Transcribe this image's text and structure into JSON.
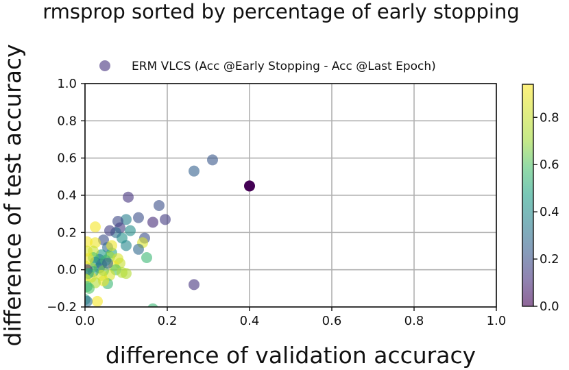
{
  "chart_data": {
    "type": "scatter",
    "title": "rmsprop sorted by percentage of early stopping",
    "xlabel": "difference of validation accuracy",
    "ylabel": "difference of test accuracy",
    "xlim": [
      0.0,
      1.0
    ],
    "ylim": [
      -0.2,
      1.0
    ],
    "xticks": [
      "0.0",
      "0.2",
      "0.4",
      "0.6",
      "0.8",
      "1.0"
    ],
    "yticks": [
      "−0.2",
      "0.0",
      "0.2",
      "0.4",
      "0.6",
      "0.8",
      "1.0"
    ],
    "grid": true,
    "legend": {
      "entry": "ERM VLCS (Acc @Early Stopping - Acc @Last Epoch)",
      "placement": "top-center"
    },
    "colorbar": {
      "ticks": [
        "0.0",
        "0.2",
        "0.4",
        "0.6",
        "0.8"
      ],
      "range": [
        0.0,
        0.94
      ],
      "colormap": "viridis"
    },
    "series": [
      {
        "name": "ERM VLCS (Acc @Early Stopping - Acc @Last Epoch)",
        "points": [
          {
            "x": 0.4,
            "y": 0.45,
            "c": 0.0
          },
          {
            "x": 0.31,
            "y": 0.59,
            "c": 0.22
          },
          {
            "x": 0.265,
            "y": 0.53,
            "c": 0.25
          },
          {
            "x": 0.265,
            "y": -0.08,
            "c": 0.12
          },
          {
            "x": 0.18,
            "y": 0.345,
            "c": 0.2
          },
          {
            "x": 0.195,
            "y": 0.27,
            "c": 0.14
          },
          {
            "x": 0.165,
            "y": 0.255,
            "c": 0.1
          },
          {
            "x": 0.105,
            "y": 0.39,
            "c": 0.12
          },
          {
            "x": 0.13,
            "y": 0.28,
            "c": 0.2
          },
          {
            "x": 0.1,
            "y": 0.27,
            "c": 0.35
          },
          {
            "x": 0.08,
            "y": 0.26,
            "c": 0.18
          },
          {
            "x": 0.085,
            "y": 0.225,
            "c": 0.15
          },
          {
            "x": 0.11,
            "y": 0.21,
            "c": 0.4
          },
          {
            "x": 0.09,
            "y": 0.17,
            "c": 0.42
          },
          {
            "x": 0.145,
            "y": 0.17,
            "c": 0.2
          },
          {
            "x": 0.14,
            "y": 0.145,
            "c": 0.85
          },
          {
            "x": 0.13,
            "y": 0.11,
            "c": 0.28
          },
          {
            "x": 0.15,
            "y": 0.065,
            "c": 0.55
          },
          {
            "x": 0.1,
            "y": 0.13,
            "c": 0.38
          },
          {
            "x": 0.075,
            "y": 0.2,
            "c": 0.3
          },
          {
            "x": 0.06,
            "y": 0.21,
            "c": 0.15
          },
          {
            "x": 0.045,
            "y": 0.16,
            "c": 0.2
          },
          {
            "x": 0.055,
            "y": 0.12,
            "c": 0.28
          },
          {
            "x": 0.065,
            "y": 0.09,
            "c": 0.5
          },
          {
            "x": 0.06,
            "y": 0.07,
            "c": 0.7
          },
          {
            "x": 0.08,
            "y": 0.06,
            "c": 0.85
          },
          {
            "x": 0.085,
            "y": 0.035,
            "c": 0.8
          },
          {
            "x": 0.07,
            "y": 0.02,
            "c": 0.9
          },
          {
            "x": 0.075,
            "y": 0.0,
            "c": 0.6
          },
          {
            "x": 0.09,
            "y": -0.015,
            "c": 0.75
          },
          {
            "x": 0.06,
            "y": -0.03,
            "c": 0.85
          },
          {
            "x": 0.055,
            "y": -0.075,
            "c": 0.55
          },
          {
            "x": 0.045,
            "y": -0.06,
            "c": 0.9
          },
          {
            "x": 0.04,
            "y": 0.08,
            "c": 0.45
          },
          {
            "x": 0.035,
            "y": 0.055,
            "c": 0.35
          },
          {
            "x": 0.04,
            "y": 0.03,
            "c": 0.2
          },
          {
            "x": 0.035,
            "y": 0.01,
            "c": 0.3
          },
          {
            "x": 0.045,
            "y": -0.005,
            "c": 0.65
          },
          {
            "x": 0.04,
            "y": -0.03,
            "c": 0.85
          },
          {
            "x": 0.025,
            "y": 0.23,
            "c": 0.92
          },
          {
            "x": 0.025,
            "y": 0.145,
            "c": 0.9
          },
          {
            "x": 0.02,
            "y": 0.1,
            "c": 0.8
          },
          {
            "x": 0.02,
            "y": 0.065,
            "c": 0.6
          },
          {
            "x": 0.025,
            "y": 0.04,
            "c": 0.4
          },
          {
            "x": 0.015,
            "y": 0.01,
            "c": 0.7
          },
          {
            "x": 0.02,
            "y": -0.01,
            "c": 0.5
          },
          {
            "x": 0.015,
            "y": -0.04,
            "c": 0.9
          },
          {
            "x": 0.025,
            "y": -0.07,
            "c": 0.75
          },
          {
            "x": 0.01,
            "y": -0.1,
            "c": 0.6
          },
          {
            "x": 0.03,
            "y": -0.17,
            "c": 0.92
          },
          {
            "x": 0.005,
            "y": 0.15,
            "c": 0.92
          },
          {
            "x": 0.005,
            "y": 0.1,
            "c": 0.85
          },
          {
            "x": 0.008,
            "y": 0.06,
            "c": 0.9
          },
          {
            "x": 0.0,
            "y": 0.02,
            "c": 0.88
          },
          {
            "x": 0.005,
            "y": 0.0,
            "c": 0.12
          },
          {
            "x": 0.008,
            "y": -0.02,
            "c": 0.5
          },
          {
            "x": 0.0,
            "y": -0.05,
            "c": 0.8
          },
          {
            "x": 0.005,
            "y": -0.09,
            "c": 0.55
          },
          {
            "x": 0.0,
            "y": -0.16,
            "c": 0.5
          },
          {
            "x": 0.005,
            "y": -0.17,
            "c": 0.3
          },
          {
            "x": 0.05,
            "y": 0.05,
            "c": 0.55
          },
          {
            "x": 0.055,
            "y": 0.035,
            "c": 0.25
          },
          {
            "x": 0.065,
            "y": 0.13,
            "c": 0.9
          },
          {
            "x": 0.1,
            "y": -0.02,
            "c": 0.75
          },
          {
            "x": 0.165,
            "y": -0.21,
            "c": 0.55
          }
        ]
      }
    ]
  }
}
